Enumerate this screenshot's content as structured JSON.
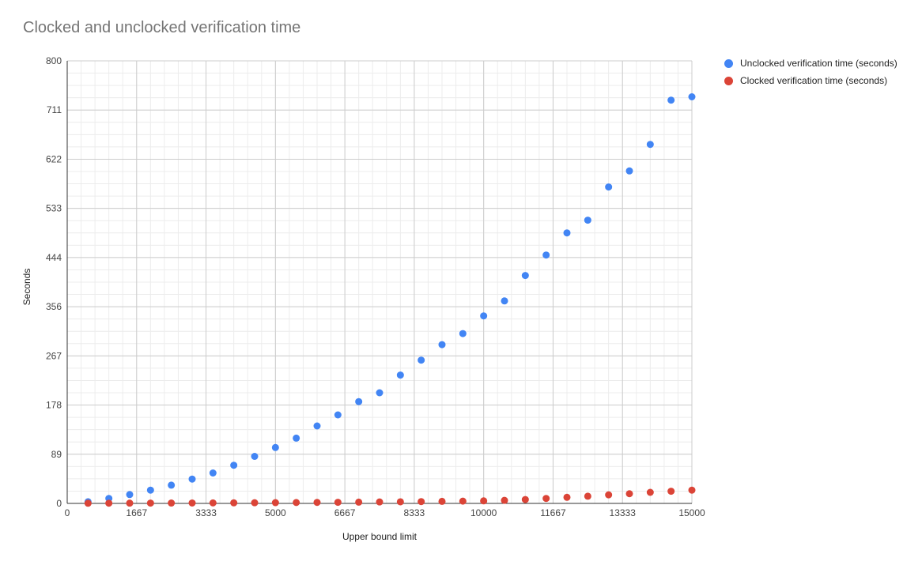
{
  "chart_data": {
    "type": "scatter",
    "title": "Clocked and unclocked verification time",
    "xlabel": "Upper bound limit",
    "ylabel": "Seconds",
    "xlim": [
      0,
      15000
    ],
    "ylim": [
      0,
      800
    ],
    "xticks": [
      "0",
      "1667",
      "3333",
      "5000",
      "6667",
      "8333",
      "10000",
      "11667",
      "13333",
      "15000"
    ],
    "yticks": [
      "0",
      "89",
      "178",
      "267",
      "356",
      "444",
      "533",
      "622",
      "711",
      "800"
    ],
    "grid": true,
    "legend_position": "right",
    "series": [
      {
        "name": "Unclocked verification time (seconds)",
        "color": "#4285f4",
        "x": [
          500,
          1000,
          1500,
          2000,
          2500,
          3000,
          3500,
          4000,
          4500,
          5000,
          5500,
          6000,
          6500,
          7000,
          7500,
          8000,
          8500,
          9000,
          9500,
          10000,
          10500,
          11000,
          11500,
          12000,
          12500,
          13000,
          13500,
          14000,
          14500,
          15000
        ],
        "y": [
          3,
          9,
          16,
          24,
          33,
          44,
          55,
          69,
          85,
          101,
          118,
          140,
          160,
          184,
          200,
          232,
          259,
          287,
          307,
          339,
          366,
          412,
          449,
          489,
          512,
          572,
          601,
          649,
          729,
          735
        ]
      },
      {
        "name": "Clocked verification time (seconds)",
        "color": "#db4437",
        "x": [
          500,
          1000,
          1500,
          2000,
          2500,
          3000,
          3500,
          4000,
          4500,
          5000,
          5500,
          6000,
          6500,
          7000,
          7500,
          8000,
          8500,
          9000,
          9500,
          10000,
          10500,
          11000,
          11500,
          12000,
          12500,
          13000,
          13500,
          14000,
          14500,
          15000
        ],
        "y": [
          0.3,
          0.4,
          0.5,
          0.6,
          0.7,
          0.8,
          0.9,
          1.0,
          1.2,
          1.4,
          1.6,
          1.8,
          2.0,
          2.3,
          2.6,
          2.9,
          3.3,
          3.7,
          4.1,
          4.6,
          5.5,
          7.0,
          9.0,
          11.0,
          13.0,
          15.5,
          17.5,
          20.0,
          22.0,
          24.0
        ]
      }
    ]
  }
}
